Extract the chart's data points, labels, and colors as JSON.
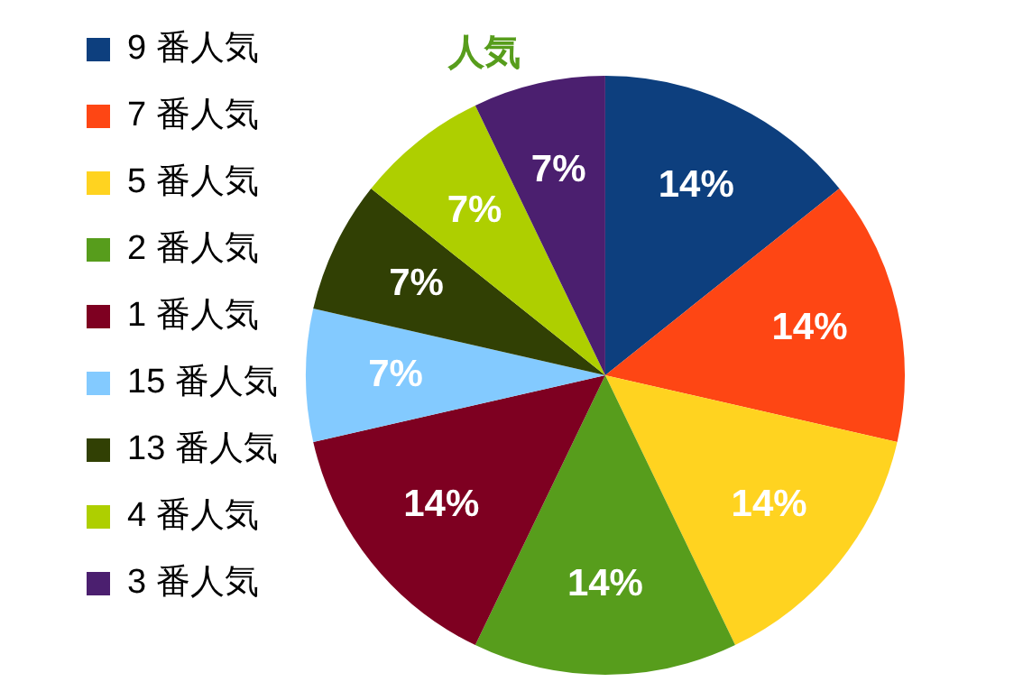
{
  "chart_data": {
    "type": "pie",
    "title": "人気",
    "categories": [
      "9 番人気",
      "7 番人気",
      "5 番人気",
      "2 番人気",
      "1 番人気",
      "15 番人気",
      "13 番人気",
      "4 番人気",
      "3 番人気"
    ],
    "values": [
      14,
      14,
      14,
      14,
      14,
      7,
      7,
      7,
      7
    ],
    "value_labels": [
      "14%",
      "14%",
      "14%",
      "14%",
      "14%",
      "7%",
      "7%",
      "7%",
      "7%"
    ],
    "colors": [
      "#0d3f7e",
      "#fe4614",
      "#ffd320",
      "#579d1c",
      "#7e0021",
      "#83caff",
      "#314004",
      "#aecf00",
      "#4b1f6f"
    ],
    "legend": "left"
  }
}
